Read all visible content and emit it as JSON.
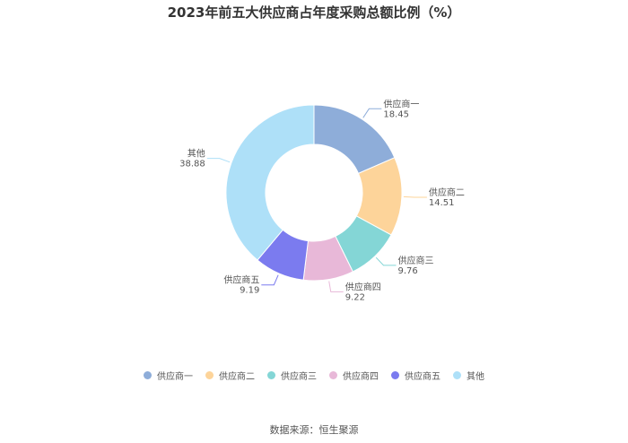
{
  "chart_data": {
    "type": "pie",
    "title": "2023年前五大供应商占年度采购总额比例（%）",
    "categories": [
      "供应商一",
      "供应商二",
      "供应商三",
      "供应商四",
      "供应商五",
      "其他"
    ],
    "values": [
      18.45,
      14.51,
      9.76,
      9.22,
      9.19,
      38.88
    ],
    "value_labels": [
      "18.45",
      "14.51",
      "9.76",
      "9.22",
      "9.19",
      "38.88"
    ],
    "colors": [
      "#8eadd9",
      "#fdd49a",
      "#84d6d6",
      "#e8b8d8",
      "#7b7bef",
      "#aee0f8"
    ],
    "donut": true,
    "legend_position": "bottom"
  },
  "source": "数据来源：恒生聚源"
}
